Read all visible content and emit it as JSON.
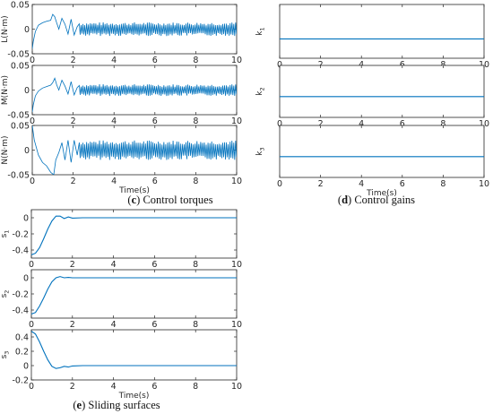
{
  "captions": {
    "c": {
      "letter": "c",
      "text": "Control torques"
    },
    "d": {
      "letter": "d",
      "text": "Control gains"
    },
    "e": {
      "letter": "e",
      "text": "Sliding surfaces"
    }
  },
  "colors": {
    "line": "#0072BD",
    "axis": "#262626",
    "grid": "#ffffff"
  },
  "chart_data": [
    {
      "type": "line",
      "panel": "c",
      "name": "L",
      "ylabel": "L(N·m)",
      "xlabel": "",
      "xlim": [
        0,
        10
      ],
      "ylim": [
        -0.05,
        0.05
      ],
      "xticks": [
        "0",
        "2",
        "4",
        "6",
        "8",
        "10"
      ],
      "yticks": [
        "-0.05",
        "0",
        "0.05"
      ],
      "x": [
        0,
        0.05,
        0.15,
        0.3,
        0.5,
        0.7,
        0.9,
        1.0,
        1.1,
        1.2,
        1.3,
        1.45,
        1.6,
        1.75,
        1.9,
        2.05,
        2.2,
        2.4,
        10
      ],
      "y": [
        -0.04,
        -0.025,
        -0.005,
        0.008,
        0.013,
        0.016,
        0.018,
        0.03,
        0.025,
        0.012,
        0.0,
        0.022,
        0.01,
        -0.01,
        0.02,
        -0.012,
        0.005,
        0.0,
        0.0
      ],
      "chatter": {
        "x_start": 2.3,
        "x_end": 10,
        "amplitude": 0.014
      }
    },
    {
      "type": "line",
      "panel": "c",
      "name": "M",
      "ylabel": "M(N·m)",
      "xlabel": "",
      "xlim": [
        0,
        10
      ],
      "ylim": [
        -0.05,
        0.05
      ],
      "xticks": [
        "0",
        "2",
        "4",
        "6",
        "8",
        "10"
      ],
      "yticks": [
        "-0.05",
        "0",
        "0.05"
      ],
      "x": [
        0,
        0.05,
        0.15,
        0.3,
        0.5,
        0.7,
        0.9,
        1.0,
        1.1,
        1.2,
        1.3,
        1.45,
        1.6,
        1.75,
        1.9,
        2.05,
        2.2,
        2.4,
        10
      ],
      "y": [
        -0.045,
        -0.03,
        -0.012,
        -0.002,
        0.004,
        0.007,
        0.01,
        0.015,
        0.024,
        0.01,
        0.0,
        0.02,
        0.008,
        -0.008,
        0.017,
        -0.01,
        0.005,
        0.0,
        0.0
      ],
      "chatter": {
        "x_start": 2.3,
        "x_end": 10,
        "amplitude": 0.012
      }
    },
    {
      "type": "line",
      "panel": "c",
      "name": "N",
      "ylabel": "N(N·m)",
      "xlabel": "Time(s)",
      "xlim": [
        0,
        10
      ],
      "ylim": [
        -0.05,
        0.05
      ],
      "xticks": [
        "0",
        "2",
        "4",
        "6",
        "8",
        "10"
      ],
      "yticks": [
        "-0.05",
        "0",
        "0.05"
      ],
      "x": [
        0,
        0.1,
        0.3,
        0.5,
        0.7,
        0.9,
        1.05,
        1.15,
        1.3,
        1.45,
        1.6,
        1.75,
        1.9,
        2.05,
        2.2,
        2.4,
        10
      ],
      "y": [
        0.05,
        0.02,
        -0.01,
        -0.025,
        -0.032,
        -0.045,
        -0.05,
        -0.02,
        -0.005,
        0.015,
        -0.02,
        0.02,
        -0.025,
        0.02,
        -0.01,
        0.0,
        0.0
      ],
      "chatter": {
        "x_start": 2.3,
        "x_end": 10,
        "amplitude": 0.02
      }
    },
    {
      "type": "line",
      "panel": "d",
      "name": "k1",
      "ylabel_main": "k",
      "ylabel_sub": "1",
      "xlabel": "",
      "xlim": [
        0,
        10
      ],
      "ylim": [
        0,
        0.5
      ],
      "xticks": [
        "0",
        "2",
        "4",
        "6",
        "8",
        "10"
      ],
      "yticks": [],
      "x": [
        0,
        10
      ],
      "y": [
        0.18,
        0.18
      ]
    },
    {
      "type": "line",
      "panel": "d",
      "name": "k2",
      "ylabel_main": "k",
      "ylabel_sub": "2",
      "xlabel": "",
      "xlim": [
        0,
        10
      ],
      "ylim": [
        0,
        0.5
      ],
      "xticks": [
        "0",
        "2",
        "4",
        "6",
        "8",
        "10"
      ],
      "yticks": [],
      "x": [
        0,
        10
      ],
      "y": [
        0.2,
        0.2
      ]
    },
    {
      "type": "line",
      "panel": "d",
      "name": "k3",
      "ylabel_main": "k",
      "ylabel_sub": "3",
      "xlabel": "Time(s)",
      "xlim": [
        0,
        10
      ],
      "ylim": [
        0,
        0.5
      ],
      "xticks": [
        "0",
        "2",
        "4",
        "6",
        "8",
        "10"
      ],
      "yticks": [],
      "x": [
        0,
        10
      ],
      "y": [
        0.2,
        0.2
      ]
    },
    {
      "type": "line",
      "panel": "e",
      "name": "s1",
      "ylabel_main": "s",
      "ylabel_sub": "1",
      "xlabel": "",
      "xlim": [
        0,
        10
      ],
      "ylim": [
        -0.5,
        0.1
      ],
      "xticks": [
        "0",
        "2",
        "4",
        "6",
        "8",
        "10"
      ],
      "yticks": [
        "-0.4",
        "-0.2",
        "0"
      ],
      "x": [
        0,
        0.2,
        0.4,
        0.6,
        0.8,
        1.0,
        1.2,
        1.4,
        1.6,
        1.8,
        2.0,
        2.5,
        10
      ],
      "y": [
        -0.46,
        -0.44,
        -0.37,
        -0.26,
        -0.14,
        -0.04,
        0.02,
        0.02,
        -0.01,
        0.01,
        -0.005,
        0.0,
        0.0
      ]
    },
    {
      "type": "line",
      "panel": "e",
      "name": "s2",
      "ylabel_main": "s",
      "ylabel_sub": "2",
      "xlabel": "",
      "xlim": [
        0,
        10
      ],
      "ylim": [
        -0.5,
        0.1
      ],
      "xticks": [
        "0",
        "2",
        "4",
        "6",
        "8",
        "10"
      ],
      "yticks": [
        "-0.4",
        "-0.2",
        "0"
      ],
      "x": [
        0,
        0.2,
        0.4,
        0.6,
        0.8,
        1.0,
        1.2,
        1.4,
        1.6,
        1.8,
        2.0,
        2.5,
        10
      ],
      "y": [
        -0.45,
        -0.43,
        -0.35,
        -0.25,
        -0.14,
        -0.05,
        0.0,
        0.015,
        0.0,
        0.005,
        0.0,
        0.0,
        0.0
      ]
    },
    {
      "type": "line",
      "panel": "e",
      "name": "s3",
      "ylabel_main": "s",
      "ylabel_sub": "3",
      "xlabel": "Time(s)",
      "xlim": [
        0,
        10
      ],
      "ylim": [
        -0.2,
        0.5
      ],
      "xticks": [
        "0",
        "2",
        "4",
        "6",
        "8",
        "10"
      ],
      "yticks": [
        "-0.2",
        "0",
        "0.2",
        "0.4"
      ],
      "x": [
        0,
        0.2,
        0.4,
        0.6,
        0.8,
        1.0,
        1.2,
        1.4,
        1.6,
        1.8,
        2.0,
        2.5,
        10
      ],
      "y": [
        0.48,
        0.44,
        0.33,
        0.2,
        0.08,
        -0.01,
        -0.04,
        -0.03,
        -0.01,
        -0.02,
        -0.005,
        0.0,
        0.0
      ]
    }
  ]
}
